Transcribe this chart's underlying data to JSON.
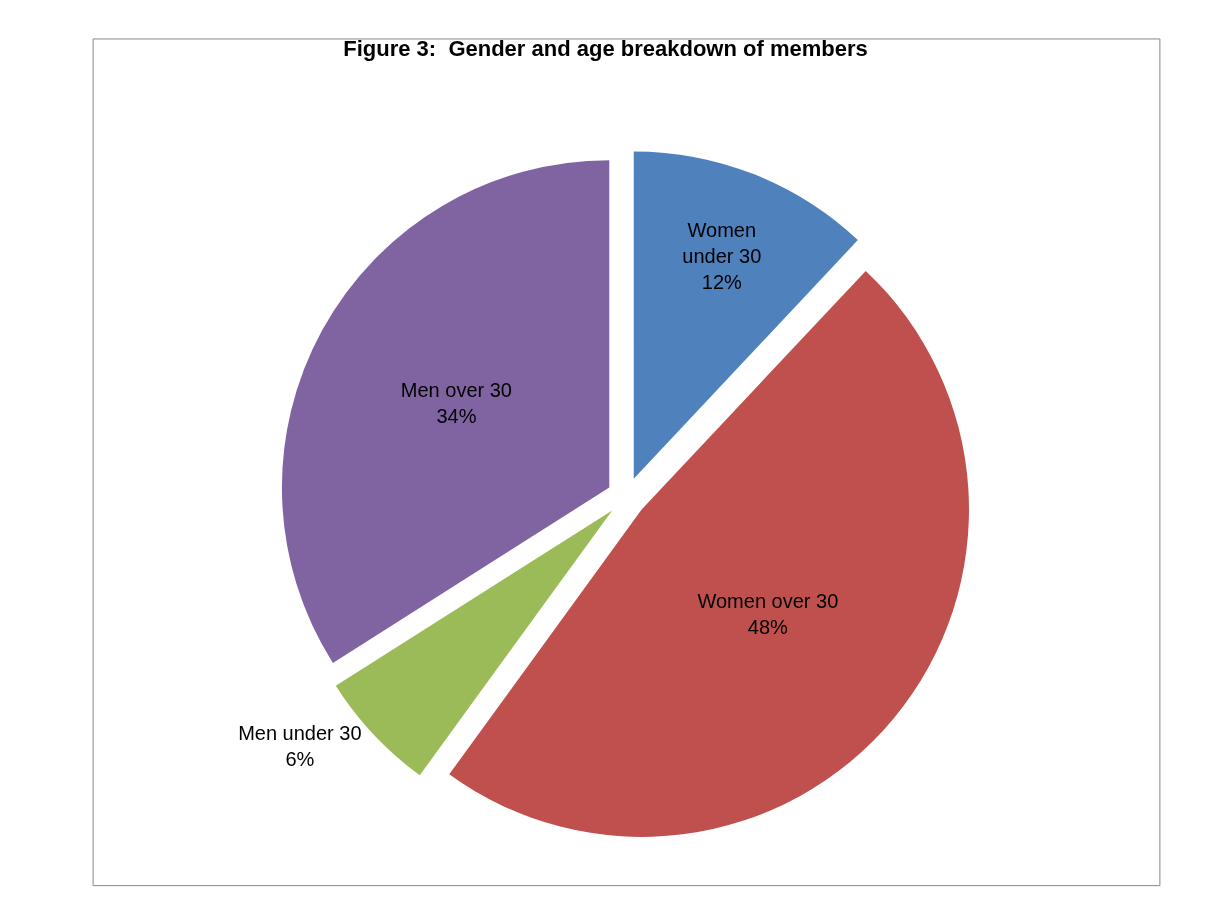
{
  "chart_data": {
    "type": "pie",
    "title": "Figure 3:  Gender and age breakdown of members",
    "categories": [
      "Women under 30",
      "Women over 30",
      "Men under 30",
      "Men over 30"
    ],
    "values": [
      12,
      48,
      6,
      34
    ],
    "value_labels": [
      "12%",
      "48%",
      "6%",
      "34%"
    ],
    "colors": [
      "#4f81bd",
      "#c0504d",
      "#9bbb59",
      "#8064a2"
    ],
    "legend": false
  }
}
